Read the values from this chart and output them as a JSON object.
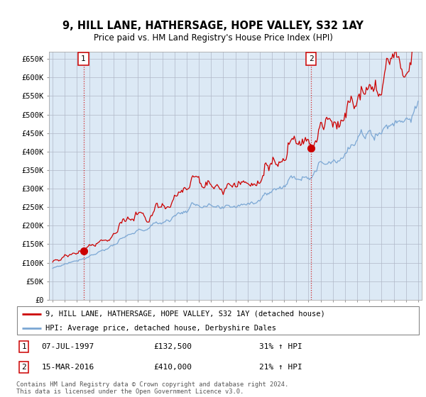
{
  "title": "9, HILL LANE, HATHERSAGE, HOPE VALLEY, S32 1AY",
  "subtitle": "Price paid vs. HM Land Registry's House Price Index (HPI)",
  "ylim": [
    0,
    670000
  ],
  "yticks": [
    0,
    50000,
    100000,
    150000,
    200000,
    250000,
    300000,
    350000,
    400000,
    450000,
    500000,
    550000,
    600000,
    650000
  ],
  "ytick_labels": [
    "£0",
    "£50K",
    "£100K",
    "£150K",
    "£200K",
    "£250K",
    "£300K",
    "£350K",
    "£400K",
    "£450K",
    "£500K",
    "£550K",
    "£600K",
    "£650K"
  ],
  "sale1_year": 1997.53,
  "sale1_price": 132500,
  "sale1_label": "1",
  "sale2_year": 2016.21,
  "sale2_price": 410000,
  "sale2_label": "2",
  "legend_property": "9, HILL LANE, HATHERSAGE, HOPE VALLEY, S32 1AY (detached house)",
  "legend_hpi": "HPI: Average price, detached house, Derbyshire Dales",
  "footer": "Contains HM Land Registry data © Crown copyright and database right 2024.\nThis data is licensed under the Open Government Licence v3.0.",
  "property_color": "#cc0000",
  "hpi_color": "#7ba7d4",
  "marker_color": "#cc0000",
  "vline_color": "#cc0000",
  "box_color": "#cc0000",
  "plot_bg": "#dce9f5",
  "fig_bg": "#ffffff",
  "grid_color": "#b0b8c8"
}
